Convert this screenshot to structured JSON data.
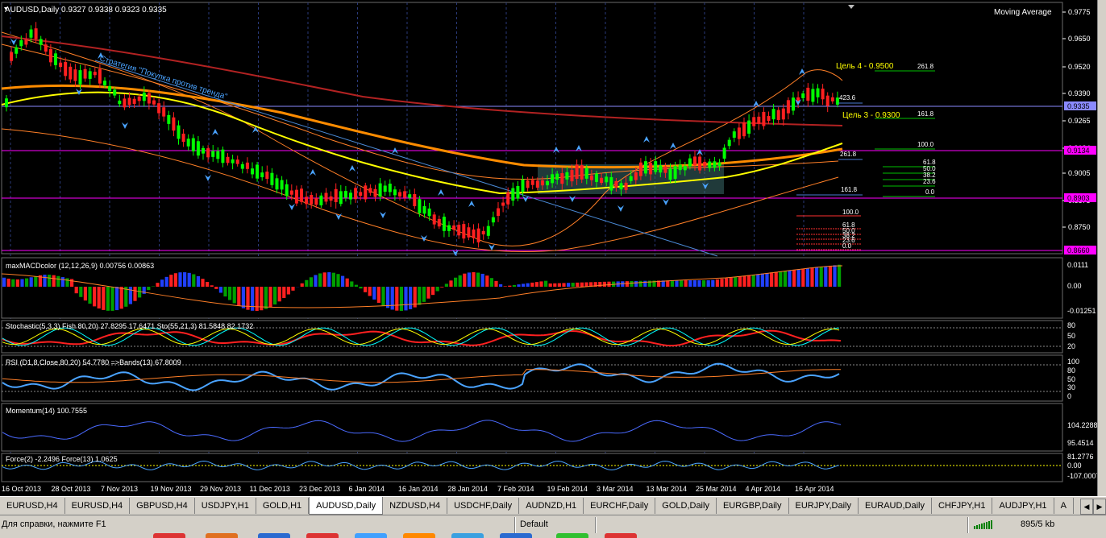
{
  "chart": {
    "header": "AUDUSD,Daily  0.9327 0.9338 0.9323 0.9335",
    "indicator_label": "Moving Average",
    "strategy_text": "Стратегия \"Покупка против тренда\"",
    "target4": "Цель 4 - 0.9500",
    "target3": "Цель 3 - 0.9300",
    "price_axis": [
      "0.9775",
      "0.9650",
      "0.9520",
      "0.9390",
      "0.9265",
      "0.9134",
      "0.9005",
      "0.8875",
      "0.8750"
    ],
    "price_tags": {
      "current": "0.9335",
      "upper_line": "0.9134",
      "lower_line": "0.8903",
      "bottom_line": "0.8660"
    },
    "fib_upper": [
      "261.8",
      "423.6",
      "161.8",
      "100.0",
      "61.8",
      "50.0",
      "38.2",
      "23.6",
      "0.0",
      "261.8",
      "161.8"
    ],
    "fib_lower": [
      "100.0",
      "61.8",
      "50.0",
      "38.2",
      "23.6",
      "0.0"
    ]
  },
  "panels": {
    "macd": {
      "label": "maxMACDcolor (12,12,26,9) 0.00756 0.00863",
      "scale": [
        "0.0111",
        "0.00",
        "-0.01251"
      ]
    },
    "stoch": {
      "label": "Stochastic(5,3,3) Fish 80,20) 27.8295 17.6471  Sto(55,21,3) 81.5848 82.1732",
      "scale": [
        "80",
        "50",
        "20"
      ]
    },
    "rsi": {
      "label": "RSI (D1,8,Close,80,20) 54.7780  =>Bands(13) 67.8009",
      "scale": [
        "100",
        "80",
        "50",
        "30",
        "0"
      ]
    },
    "momentum": {
      "label": "Momentum(14) 100.7555",
      "scale": [
        "104.2288",
        "95.4514"
      ]
    },
    "force": {
      "label": "Force(2) -2.2496   Force(13) 1.0625",
      "scale": [
        "81.2776",
        "0.00",
        "-107.0007"
      ]
    }
  },
  "time_axis": [
    "16 Oct 2013",
    "28 Oct 2013",
    "7 Nov 2013",
    "19 Nov 2013",
    "29 Nov 2013",
    "11 Dec 2013",
    "23 Dec 2013",
    "6 Jan 2014",
    "16 Jan 2014",
    "28 Jan 2014",
    "7 Feb 2014",
    "19 Feb 2014",
    "3 Mar 2014",
    "13 Mar 2014",
    "25 Mar 2014",
    "4 Apr 2014",
    "16 Apr 2014"
  ],
  "tabs": [
    "EURUSD,H4",
    "EURUSD,H4",
    "GBPUSD,H4",
    "USDJPY,H1",
    "GOLD,H1",
    "AUDUSD,Daily",
    "NZDUSD,H4",
    "USDCHF,Daily",
    "AUDNZD,H1",
    "EURCHF,Daily",
    "GOLD,Daily",
    "EURGBP,Daily",
    "EURJPY,Daily",
    "EURAUD,Daily",
    "CHFJPY,H1",
    "AUDJPY,H1",
    "A"
  ],
  "active_tab": "AUDUSD,Daily",
  "status": {
    "help": "Для справки, нажмите F1",
    "profile": "Default",
    "traffic": "895/5 kb"
  }
}
